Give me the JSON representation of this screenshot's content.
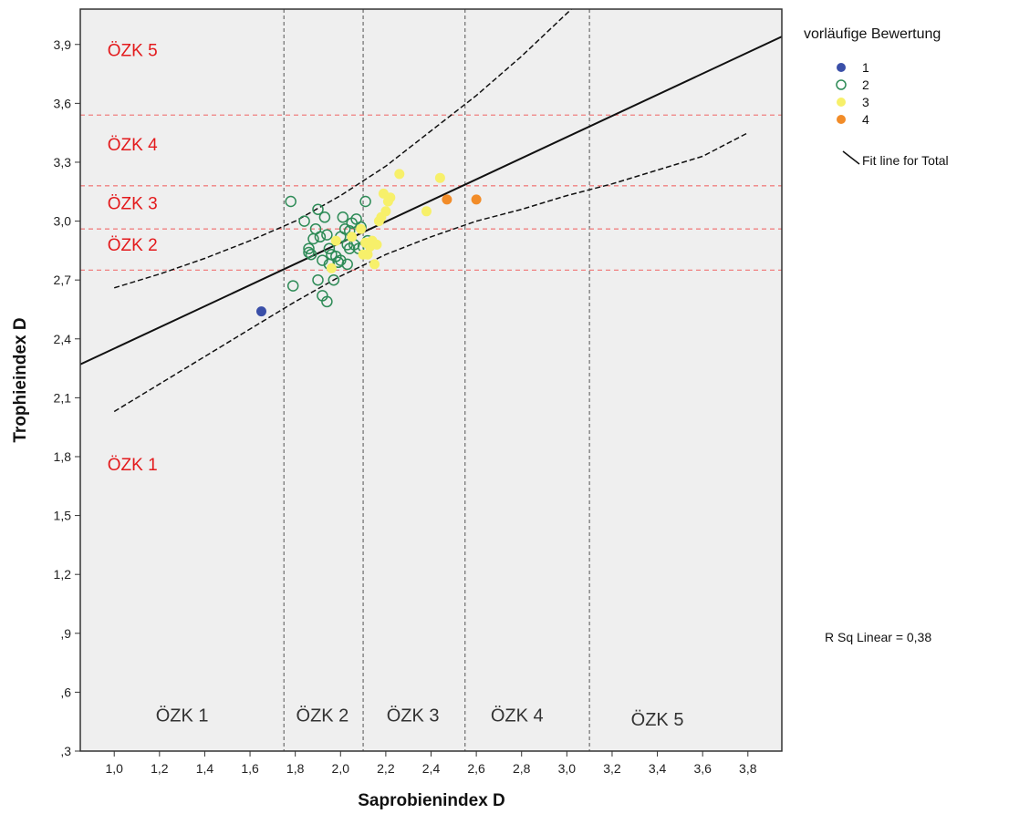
{
  "chart_data": {
    "type": "scatter",
    "xlabel": "Saprobienindex D",
    "ylabel": "Trophieindex D",
    "xlim": [
      0.85,
      3.95
    ],
    "ylim": [
      0.3,
      4.08
    ],
    "x_ticks": [
      "1,0",
      "1,2",
      "1,4",
      "1,6",
      "1,8",
      "2,0",
      "2,2",
      "2,4",
      "2,6",
      "2,8",
      "3,0",
      "3,2",
      "3,4",
      "3,6",
      "3,8"
    ],
    "x_tick_values": [
      1.0,
      1.2,
      1.4,
      1.6,
      1.8,
      2.0,
      2.2,
      2.4,
      2.6,
      2.8,
      3.0,
      3.2,
      3.4,
      3.6,
      3.8
    ],
    "y_ticks": [
      ",3",
      ",6",
      ",9",
      "1,2",
      "1,5",
      "1,8",
      "2,1",
      "2,4",
      "2,7",
      "3,0",
      "3,3",
      "3,6",
      "3,9"
    ],
    "y_tick_values": [
      0.3,
      0.6,
      0.9,
      1.2,
      1.5,
      1.8,
      2.1,
      2.4,
      2.7,
      3.0,
      3.3,
      3.6,
      3.9
    ],
    "legend": {
      "title": "vorläufige Bewertung",
      "placement": "top-right",
      "entries": [
        {
          "label": "1",
          "color": "#3a4fa8",
          "marker": "filled"
        },
        {
          "label": "2",
          "color": "#2e8b57",
          "marker": "open"
        },
        {
          "label": "3",
          "color": "#f7f06a",
          "marker": "filled"
        },
        {
          "label": "4",
          "color": "#f28c28",
          "marker": "filled"
        }
      ],
      "fit_label": "Fit line for Total"
    },
    "r_squared_text": "R Sq Linear = 0,38",
    "fit_line": {
      "x": [
        0.85,
        3.95
      ],
      "y": [
        2.27,
        3.94
      ]
    },
    "ci_upper": {
      "x": [
        1.0,
        1.2,
        1.4,
        1.6,
        1.8,
        2.0,
        2.2,
        2.4,
        2.6,
        2.8,
        3.02
      ],
      "y": [
        2.66,
        2.73,
        2.81,
        2.9,
        3.0,
        3.13,
        3.28,
        3.46,
        3.64,
        3.84,
        4.08
      ]
    },
    "ci_lower": {
      "x": [
        1.0,
        1.2,
        1.4,
        1.6,
        1.8,
        2.0,
        2.2,
        2.4,
        2.6,
        2.8,
        3.0,
        3.2,
        3.4,
        3.6,
        3.8
      ],
      "y": [
        2.03,
        2.17,
        2.31,
        2.45,
        2.59,
        2.72,
        2.83,
        2.92,
        3.0,
        3.06,
        3.13,
        3.19,
        3.26,
        3.33,
        3.45
      ]
    },
    "vertical_boundaries": [
      1.75,
      2.1,
      2.55,
      3.1
    ],
    "horizontal_boundaries": [
      2.75,
      2.96,
      3.18,
      3.54
    ],
    "x_zone_labels": [
      {
        "text": "ÖZK 1",
        "x": 1.3,
        "y": 0.45
      },
      {
        "text": "ÖZK 2",
        "x": 1.92,
        "y": 0.45
      },
      {
        "text": "ÖZK 3",
        "x": 2.32,
        "y": 0.45
      },
      {
        "text": "ÖZK 4",
        "x": 2.78,
        "y": 0.45
      },
      {
        "text": "ÖZK 5",
        "x": 3.4,
        "y": 0.43
      }
    ],
    "y_zone_labels": [
      {
        "text": "ÖZK 5",
        "x": 0.97,
        "y": 3.84
      },
      {
        "text": "ÖZK 4",
        "x": 0.97,
        "y": 3.36
      },
      {
        "text": "ÖZK 3",
        "x": 0.97,
        "y": 3.06
      },
      {
        "text": "ÖZK 2",
        "x": 0.97,
        "y": 2.85
      },
      {
        "text": "ÖZK 1",
        "x": 0.97,
        "y": 1.73
      }
    ],
    "series": [
      {
        "name": "1",
        "points": [
          [
            1.65,
            2.54
          ]
        ]
      },
      {
        "name": "2",
        "points": [
          [
            1.78,
            3.1
          ],
          [
            1.79,
            2.67
          ],
          [
            1.84,
            3.0
          ],
          [
            1.86,
            2.86
          ],
          [
            1.86,
            2.84
          ],
          [
            1.87,
            2.83
          ],
          [
            1.88,
            2.91
          ],
          [
            1.89,
            2.96
          ],
          [
            1.9,
            3.06
          ],
          [
            1.9,
            2.7
          ],
          [
            1.91,
            2.92
          ],
          [
            1.92,
            2.8
          ],
          [
            1.92,
            2.62
          ],
          [
            1.93,
            3.02
          ],
          [
            1.94,
            2.93
          ],
          [
            1.94,
            2.59
          ],
          [
            1.95,
            2.78
          ],
          [
            1.96,
            2.83
          ],
          [
            1.97,
            2.7
          ],
          [
            1.98,
            2.82
          ],
          [
            1.99,
            2.79
          ],
          [
            2.0,
            2.8
          ],
          [
            2.01,
            3.02
          ],
          [
            2.02,
            2.96
          ],
          [
            2.03,
            2.88
          ],
          [
            2.03,
            2.78
          ],
          [
            2.04,
            2.95
          ],
          [
            2.05,
            2.99
          ],
          [
            2.06,
            2.88
          ],
          [
            2.07,
            3.01
          ],
          [
            2.08,
            2.86
          ],
          [
            2.09,
            2.97
          ],
          [
            2.11,
            3.1
          ],
          [
            2.12,
            2.9
          ],
          [
            2.0,
            2.92
          ],
          [
            2.04,
            2.86
          ],
          [
            1.95,
            2.86
          ],
          [
            2.1,
            2.87
          ]
        ]
      },
      {
        "name": "3",
        "points": [
          [
            1.96,
            2.76
          ],
          [
            1.98,
            2.9
          ],
          [
            2.05,
            2.92
          ],
          [
            2.09,
            2.96
          ],
          [
            2.1,
            2.83
          ],
          [
            2.11,
            2.89
          ],
          [
            2.12,
            2.83
          ],
          [
            2.13,
            2.87
          ],
          [
            2.14,
            2.9
          ],
          [
            2.15,
            2.78
          ],
          [
            2.16,
            2.88
          ],
          [
            2.17,
            3.0
          ],
          [
            2.19,
            3.14
          ],
          [
            2.2,
            3.05
          ],
          [
            2.21,
            3.1
          ],
          [
            2.22,
            3.12
          ],
          [
            2.26,
            3.24
          ],
          [
            2.38,
            3.05
          ],
          [
            2.44,
            3.22
          ],
          [
            2.18,
            3.02
          ]
        ]
      },
      {
        "name": "4",
        "points": [
          [
            2.47,
            3.11
          ],
          [
            2.6,
            3.11
          ]
        ]
      }
    ]
  }
}
